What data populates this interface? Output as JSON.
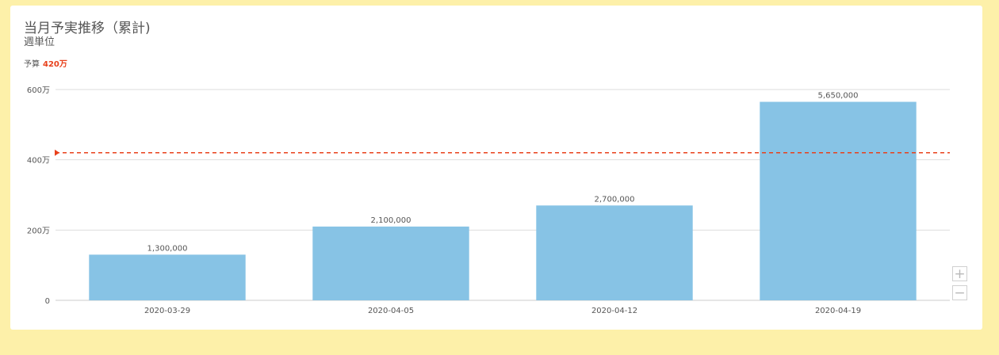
{
  "header": {
    "title": "当月予実推移（累計)",
    "subtitle": "週単位",
    "budget_label": "予算",
    "budget_value": "420万"
  },
  "zoom": {
    "in_label": "+",
    "out_label": "−"
  },
  "colors": {
    "bar": "#87c3e5",
    "budget_line": "#e8401b",
    "grid": "#dddddd",
    "text": "#555555"
  },
  "chart_data": {
    "type": "bar",
    "title": "当月予実推移（累計)",
    "subtitle": "週単位",
    "categories": [
      "2020-03-29",
      "2020-04-05",
      "2020-04-12",
      "2020-04-19"
    ],
    "values": [
      1300000,
      2100000,
      2700000,
      5650000
    ],
    "data_labels": [
      "1,300,000",
      "2,100,000",
      "2,700,000",
      "5,650,000"
    ],
    "ylim": [
      0,
      6000000
    ],
    "yticks": [
      {
        "value": 0,
        "label": "0"
      },
      {
        "value": 2000000,
        "label": "200万"
      },
      {
        "value": 4000000,
        "label": "400万"
      },
      {
        "value": 6000000,
        "label": "600万"
      }
    ],
    "reference_line": {
      "label": "予算",
      "value": 4200000,
      "style": "dashed"
    },
    "grid": true,
    "legend": "none"
  }
}
